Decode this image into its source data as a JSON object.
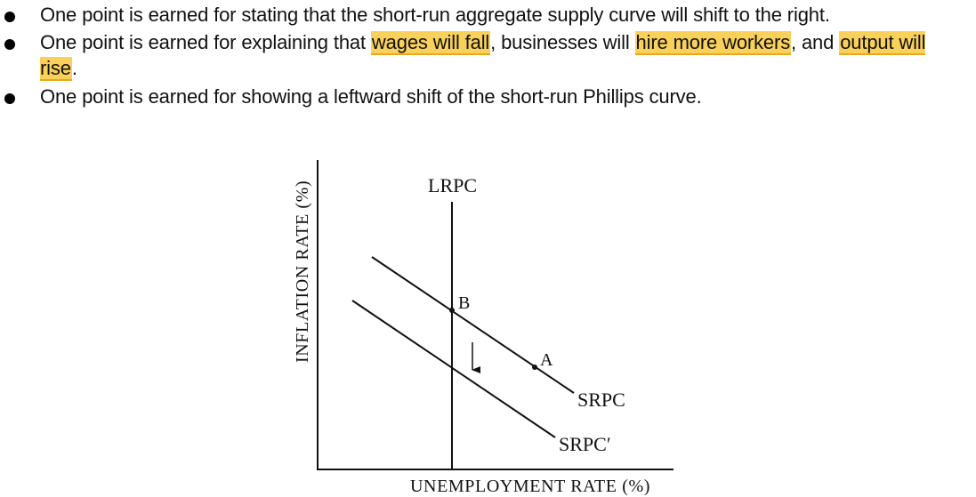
{
  "bullets": [
    {
      "parts": [
        {
          "text": "One point is earned for stating that the short-run aggregate supply curve will shift to the right.",
          "highlight": false
        }
      ]
    },
    {
      "parts": [
        {
          "text": "One point is earned for explaining that ",
          "highlight": false
        },
        {
          "text": "wages will fall",
          "highlight": true
        },
        {
          "text": ", businesses will ",
          "highlight": false
        },
        {
          "text": "hire more workers",
          "highlight": true
        },
        {
          "text": ", and ",
          "highlight": false
        },
        {
          "text": "output will rise",
          "highlight": true
        },
        {
          "text": ".",
          "highlight": false
        }
      ]
    },
    {
      "parts": [
        {
          "text": "One point is earned for showing a leftward shift of the short-run Phillips curve.",
          "highlight": false
        }
      ]
    }
  ],
  "graph": {
    "y_axis_label": "INFLATION RATE (%)",
    "x_axis_label": "UNEMPLOYMENT RATE (%)",
    "lrpc_label": "LRPC",
    "srpc_label": "SRPC",
    "srpc_shifted_label": "SRPC′",
    "point_a_label": "A",
    "point_b_label": "B"
  },
  "colors": {
    "highlight": "#f9d15a",
    "highlight_underline": "#e8a820",
    "ink": "#111111"
  }
}
